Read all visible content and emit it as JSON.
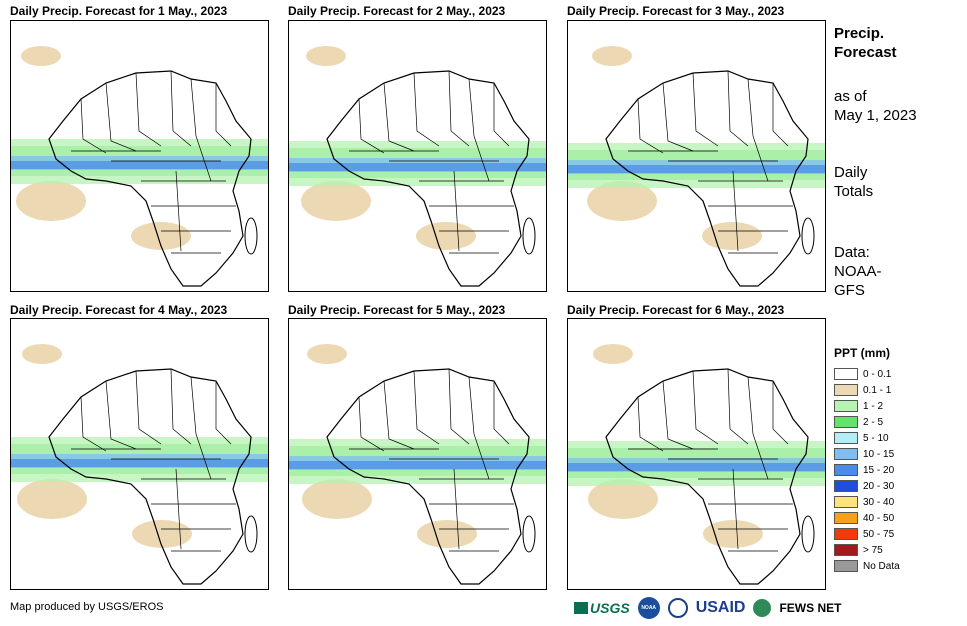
{
  "panels": [
    {
      "title": "Daily Precip. Forecast for 1 May., 2023"
    },
    {
      "title": "Daily Precip. Forecast for 2 May., 2023"
    },
    {
      "title": "Daily Precip. Forecast for 3 May., 2023"
    },
    {
      "title": "Daily Precip. Forecast for 4 May., 2023"
    },
    {
      "title": "Daily Precip. Forecast for 5 May., 2023"
    },
    {
      "title": "Daily Precip. Forecast for 6 May., 2023"
    }
  ],
  "sidebar": {
    "heading_line1": "Precip.",
    "heading_line2": "Forecast",
    "asof_line1": "as of",
    "asof_line2": "May 1, 2023",
    "totals_line1": "Daily",
    "totals_line2": "Totals",
    "data_line1": "Data:",
    "data_line2": "NOAA-",
    "data_line3": "GFS"
  },
  "legend": {
    "title": "PPT (mm)",
    "items": [
      {
        "label": "0 - 0.1",
        "color": "#ffffff"
      },
      {
        "label": "0.1 - 1",
        "color": "#ecd9b4"
      },
      {
        "label": "1 - 2",
        "color": "#b6f2b0"
      },
      {
        "label": "2 - 5",
        "color": "#63e36a"
      },
      {
        "label": "5 - 10",
        "color": "#b3eef7"
      },
      {
        "label": "10 - 15",
        "color": "#7fbdf3"
      },
      {
        "label": "15 - 20",
        "color": "#4a8de6"
      },
      {
        "label": "20 - 30",
        "color": "#1f4fd8"
      },
      {
        "label": "30 - 40",
        "color": "#fde27d"
      },
      {
        "label": "40 - 50",
        "color": "#f5a21a"
      },
      {
        "label": "50 - 75",
        "color": "#f23a0c"
      },
      {
        "label": "> 75",
        "color": "#a01c1c"
      },
      {
        "label": "No Data",
        "color": "#999999"
      }
    ]
  },
  "footer": {
    "credit": "Map produced by USGS/EROS",
    "logo_usgs": "USGS",
    "logo_noaa": "NOAA",
    "logo_usaid": "USAID",
    "logo_fews": "FEWS NET"
  }
}
